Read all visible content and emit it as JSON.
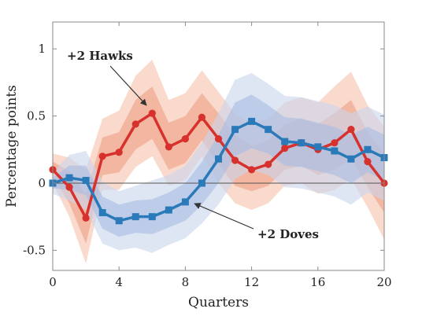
{
  "chart_data": {
    "type": "line",
    "title": "",
    "xlabel": "Quarters",
    "ylabel": "Percentage points",
    "xlim": [
      0,
      20
    ],
    "ylim": [
      -0.65,
      1.2
    ],
    "xticks": [
      0,
      4,
      8,
      12,
      16,
      20
    ],
    "yticks": [
      -0.5,
      0,
      0.5,
      1
    ],
    "ytick_labels": [
      "-0.5",
      "0",
      "0.5",
      "1"
    ],
    "grid": false,
    "zero_line": true,
    "x": [
      0,
      1,
      2,
      3,
      4,
      5,
      6,
      7,
      8,
      9,
      10,
      11,
      12,
      13,
      14,
      15,
      16,
      17,
      18,
      19,
      20
    ],
    "series": [
      {
        "name": "+2 Hawks",
        "color": "#d7312d",
        "marker": "circle",
        "values": [
          0.1,
          -0.03,
          -0.26,
          0.2,
          0.23,
          0.44,
          0.52,
          0.27,
          0.33,
          0.49,
          0.33,
          0.17,
          0.1,
          0.14,
          0.26,
          0.3,
          0.25,
          0.3,
          0.4,
          0.16,
          0.0
        ],
        "band_68": {
          "lower": [
            0.05,
            -0.15,
            -0.45,
            0.06,
            0.08,
            0.25,
            0.33,
            0.1,
            0.15,
            0.32,
            0.14,
            -0.02,
            -0.06,
            -0.02,
            0.1,
            0.13,
            0.06,
            0.1,
            0.18,
            -0.03,
            -0.22
          ],
          "upper": [
            0.16,
            0.09,
            -0.08,
            0.34,
            0.38,
            0.62,
            0.72,
            0.45,
            0.5,
            0.67,
            0.52,
            0.36,
            0.28,
            0.32,
            0.44,
            0.48,
            0.44,
            0.52,
            0.62,
            0.38,
            0.22
          ]
        },
        "band_90": {
          "lower": [
            0.0,
            -0.25,
            -0.6,
            -0.05,
            -0.05,
            0.12,
            0.2,
            -0.02,
            0.02,
            0.2,
            0.0,
            -0.15,
            -0.2,
            -0.15,
            -0.02,
            0.0,
            -0.08,
            -0.05,
            0.03,
            -0.18,
            -0.42
          ]
        },
        "note": "band_90 upper bound",
        "band_90_upper": [
          0.22,
          0.19,
          0.1,
          0.48,
          0.54,
          0.8,
          0.92,
          0.62,
          0.67,
          0.84,
          0.68,
          0.52,
          0.45,
          0.48,
          0.6,
          0.64,
          0.6,
          0.72,
          0.83,
          0.58,
          0.42
        ]
      },
      {
        "name": "+2 Doves",
        "color": "#2a7ab9",
        "marker": "square",
        "values": [
          0.0,
          0.04,
          0.02,
          -0.22,
          -0.28,
          -0.25,
          -0.25,
          -0.2,
          -0.14,
          0.0,
          0.18,
          0.4,
          0.46,
          0.4,
          0.31,
          0.3,
          0.27,
          0.24,
          0.18,
          0.25,
          0.19
        ],
        "band_68": {
          "lower": [
            -0.04,
            -0.05,
            -0.09,
            -0.34,
            -0.4,
            -0.37,
            -0.38,
            -0.33,
            -0.28,
            -0.16,
            0.0,
            0.2,
            0.26,
            0.22,
            0.13,
            0.12,
            0.09,
            0.06,
            0.0,
            0.08,
            0.02
          ],
          "upper": [
            0.04,
            0.13,
            0.13,
            -0.1,
            -0.16,
            -0.13,
            -0.12,
            -0.07,
            0.0,
            0.16,
            0.36,
            0.6,
            0.66,
            0.58,
            0.49,
            0.48,
            0.45,
            0.42,
            0.36,
            0.42,
            0.36
          ]
        },
        "band_90": {
          "lower": [
            -0.08,
            -0.13,
            -0.2,
            -0.45,
            -0.5,
            -0.48,
            -0.52,
            -0.46,
            -0.41,
            -0.3,
            -0.16,
            0.03,
            0.1,
            0.06,
            -0.03,
            -0.04,
            -0.07,
            -0.1,
            -0.16,
            -0.07,
            -0.13
          ]
        },
        "band_90_upper": [
          0.08,
          0.21,
          0.24,
          0.01,
          -0.06,
          -0.02,
          0.02,
          0.06,
          0.13,
          0.3,
          0.52,
          0.77,
          0.82,
          0.74,
          0.65,
          0.64,
          0.61,
          0.58,
          0.52,
          0.57,
          0.51
        ]
      }
    ],
    "annotations": [
      {
        "text": "+2 Hawks",
        "series": "+2 Hawks"
      },
      {
        "text": "+2 Doves",
        "series": "+2 Doves"
      }
    ]
  }
}
